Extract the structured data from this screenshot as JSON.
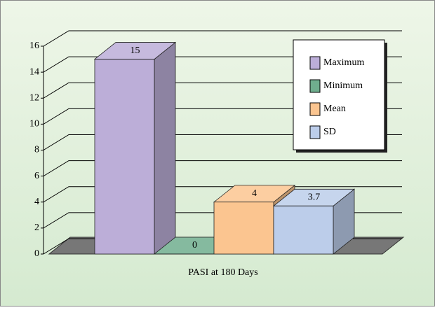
{
  "chart_data": {
    "type": "bar3d",
    "categories": [
      "PASI at 180 Days"
    ],
    "series": [
      {
        "name": "Maximum",
        "color": "#bcaed8",
        "values": [
          15
        ]
      },
      {
        "name": "Minimum",
        "color": "#6fae8e",
        "values": [
          0
        ]
      },
      {
        "name": "Mean",
        "color": "#fbc590",
        "values": [
          4
        ]
      },
      {
        "name": "SD",
        "color": "#bccdea",
        "values": [
          3.7
        ]
      }
    ],
    "ylim": [
      0,
      16
    ],
    "yticks": [
      0,
      2,
      4,
      6,
      8,
      10,
      12,
      14,
      16
    ],
    "grid": true,
    "legend": "top-right"
  }
}
